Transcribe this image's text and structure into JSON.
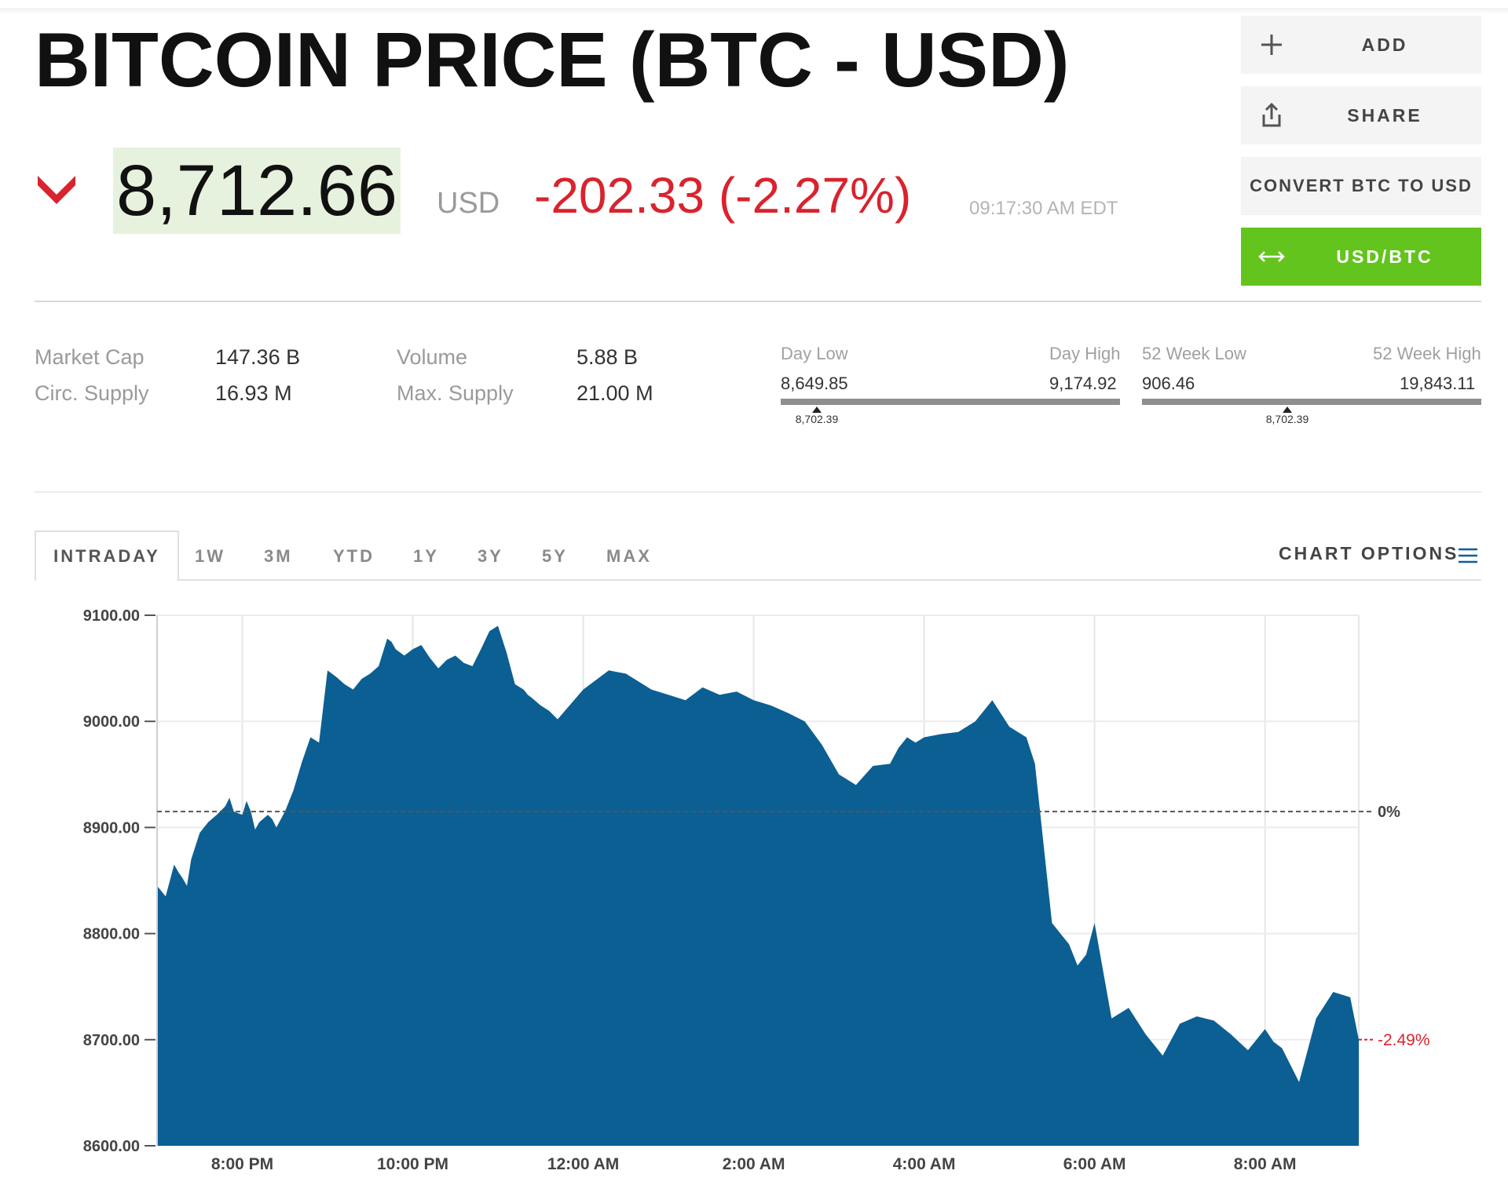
{
  "header": {
    "title": "BITCOIN PRICE (BTC - USD)",
    "price": "8,712.66",
    "currency": "USD",
    "change": "-202.33 (-2.27%)",
    "timestamp": "09:17:30 AM EDT",
    "direction": "down"
  },
  "actions": {
    "add": "ADD",
    "share": "SHARE",
    "convert": "CONVERT BTC TO USD",
    "usd_btc": "USD/BTC"
  },
  "stats": {
    "market_cap_label": "Market Cap",
    "market_cap": "147.36 B",
    "circ_supply_label": "Circ. Supply",
    "circ_supply": "16.93 M",
    "volume_label": "Volume",
    "volume": "5.88 B",
    "max_supply_label": "Max. Supply",
    "max_supply": "21.00 M"
  },
  "ranges": {
    "day_low_label": "Day Low",
    "day_low": "8,649.85",
    "day_high_label": "Day High",
    "day_high": "9,174.92",
    "day_marker": "8,702.39",
    "week52_low_label": "52 Week Low",
    "week52_low": "906.46",
    "week52_high_label": "52 Week High",
    "week52_high": "19,843.11",
    "week52_marker": "8,702.39"
  },
  "tabs": [
    "INTRADAY",
    "1W",
    "3M",
    "YTD",
    "1Y",
    "3Y",
    "5Y",
    "MAX"
  ],
  "chart_options_label": "CHART OPTIONS",
  "colors": {
    "area": "#0b5f93",
    "negative": "#d9232d",
    "accent_green": "#64c41e",
    "price_highlight": "#e7f2de"
  },
  "chart_data": {
    "type": "area",
    "title": "",
    "xlabel": "",
    "ylabel": "",
    "ylim": [
      8600,
      9100
    ],
    "yticks": [
      "9100.00",
      "9000.00",
      "8900.00",
      "8800.00",
      "8700.00",
      "8600.00"
    ],
    "xticks": [
      "8:00 PM",
      "10:00 PM",
      "12:00 AM",
      "2:00 AM",
      "4:00 AM",
      "6:00 AM",
      "8:00 AM"
    ],
    "xtick_hours": [
      1,
      3,
      5,
      7,
      9,
      11,
      13
    ],
    "x_range_hours": [
      0,
      14.1
    ],
    "reference": {
      "value": 8915,
      "label": "0%"
    },
    "end_label": "-2.49%",
    "x_hours": [
      0,
      0.1,
      0.15,
      0.2,
      0.25,
      0.3,
      0.35,
      0.4,
      0.5,
      0.6,
      0.7,
      0.8,
      0.85,
      0.9,
      1.0,
      1.05,
      1.1,
      1.15,
      1.2,
      1.3,
      1.35,
      1.4,
      1.5,
      1.55,
      1.6,
      1.7,
      1.8,
      1.9,
      2.0,
      2.1,
      2.2,
      2.3,
      2.4,
      2.5,
      2.6,
      2.7,
      2.75,
      2.8,
      2.9,
      3.0,
      3.1,
      3.2,
      3.3,
      3.4,
      3.5,
      3.6,
      3.7,
      3.8,
      3.9,
      4.0,
      4.1,
      4.2,
      4.3,
      4.35,
      4.4,
      4.5,
      4.6,
      4.7,
      5.0,
      5.3,
      5.5,
      5.6,
      5.8,
      6.0,
      6.2,
      6.4,
      6.6,
      6.8,
      7.0,
      7.2,
      7.4,
      7.6,
      7.8,
      8.0,
      8.2,
      8.4,
      8.6,
      8.7,
      8.8,
      8.9,
      9.0,
      9.2,
      9.4,
      9.6,
      9.8,
      10.0,
      10.2,
      10.3,
      10.5,
      10.6,
      10.7,
      10.8,
      10.9,
      11.0,
      11.2,
      11.4,
      11.6,
      11.8,
      12.0,
      12.2,
      12.4,
      12.6,
      12.8,
      12.9,
      13.0,
      13.1,
      13.2,
      13.4,
      13.5,
      13.6,
      13.8,
      14.0,
      14.1
    ],
    "values": [
      8845,
      8835,
      8850,
      8865,
      8858,
      8852,
      8845,
      8870,
      8895,
      8905,
      8912,
      8920,
      8928,
      8915,
      8912,
      8925,
      8915,
      8898,
      8905,
      8912,
      8908,
      8900,
      8915,
      8925,
      8935,
      8962,
      8985,
      8980,
      9048,
      9042,
      9035,
      9030,
      9040,
      9045,
      9052,
      9078,
      9075,
      9068,
      9062,
      9068,
      9072,
      9060,
      9050,
      9058,
      9062,
      9055,
      9052,
      9068,
      9085,
      9090,
      9065,
      9035,
      9030,
      9025,
      9022,
      9015,
      9010,
      9002,
      9030,
      9048,
      9045,
      9040,
      9030,
      9025,
      9020,
      9032,
      9025,
      9028,
      9020,
      9015,
      9008,
      9000,
      8978,
      8950,
      8940,
      8958,
      8960,
      8975,
      8985,
      8980,
      8985,
      8988,
      8990,
      9000,
      9020,
      8995,
      8985,
      8960,
      8810,
      8800,
      8790,
      8770,
      8780,
      8810,
      8720,
      8730,
      8705,
      8685,
      8715,
      8722,
      8718,
      8705,
      8690,
      8700,
      8710,
      8698,
      8692,
      8660,
      8690,
      8720,
      8745,
      8740,
      8700
    ]
  }
}
